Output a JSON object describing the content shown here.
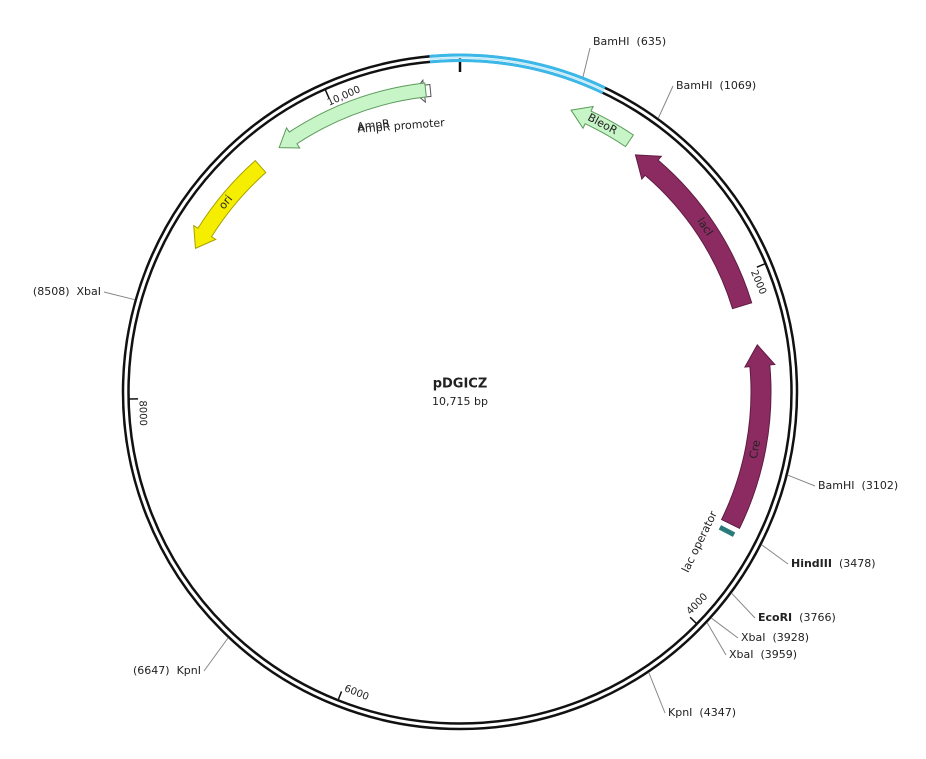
{
  "map": {
    "name": "pDGICZ",
    "length": {
      "value": 10715,
      "label": "10,715 bp"
    },
    "sites": [
      {
        "name": "BamHI",
        "label": "(635)",
        "position": 635,
        "bold": false
      },
      {
        "name": "BamHI",
        "label": "(1069)",
        "position": 1069,
        "bold": false
      },
      {
        "name": "BamHI",
        "label": "(3102)",
        "position": 3102,
        "bold": false
      },
      {
        "name": "HindIII",
        "label": "(3478)",
        "position": 3478,
        "bold": true
      },
      {
        "name": "EcoRI",
        "label": "(3766)",
        "position": 3766,
        "bold": true
      },
      {
        "name": "XbaI",
        "label": "(3928)",
        "position": 3928,
        "bold": false
      },
      {
        "name": "XbaI",
        "label": "(3959)",
        "position": 3959,
        "bold": false
      },
      {
        "name": "KpnI",
        "label": "(4347)",
        "position": 4347,
        "bold": false
      },
      {
        "name": "KpnI",
        "label": "(6647)",
        "position": 6647,
        "bold": false
      },
      {
        "name": "XbaI",
        "label": "(8508)",
        "position": 8508,
        "bold": false
      }
    ],
    "ticks": [
      2000,
      4000,
      6000,
      8000,
      {
        "value": 10000,
        "label": "10,000"
      }
    ],
    "features": [
      {
        "label": "BleoR"
      },
      {
        "label": "lacI"
      },
      {
        "label": "Cre"
      },
      {
        "label": "lac operator"
      },
      {
        "label": "AmpR promoter"
      },
      {
        "label": "AmpR"
      },
      {
        "label": "ori"
      }
    ]
  }
}
